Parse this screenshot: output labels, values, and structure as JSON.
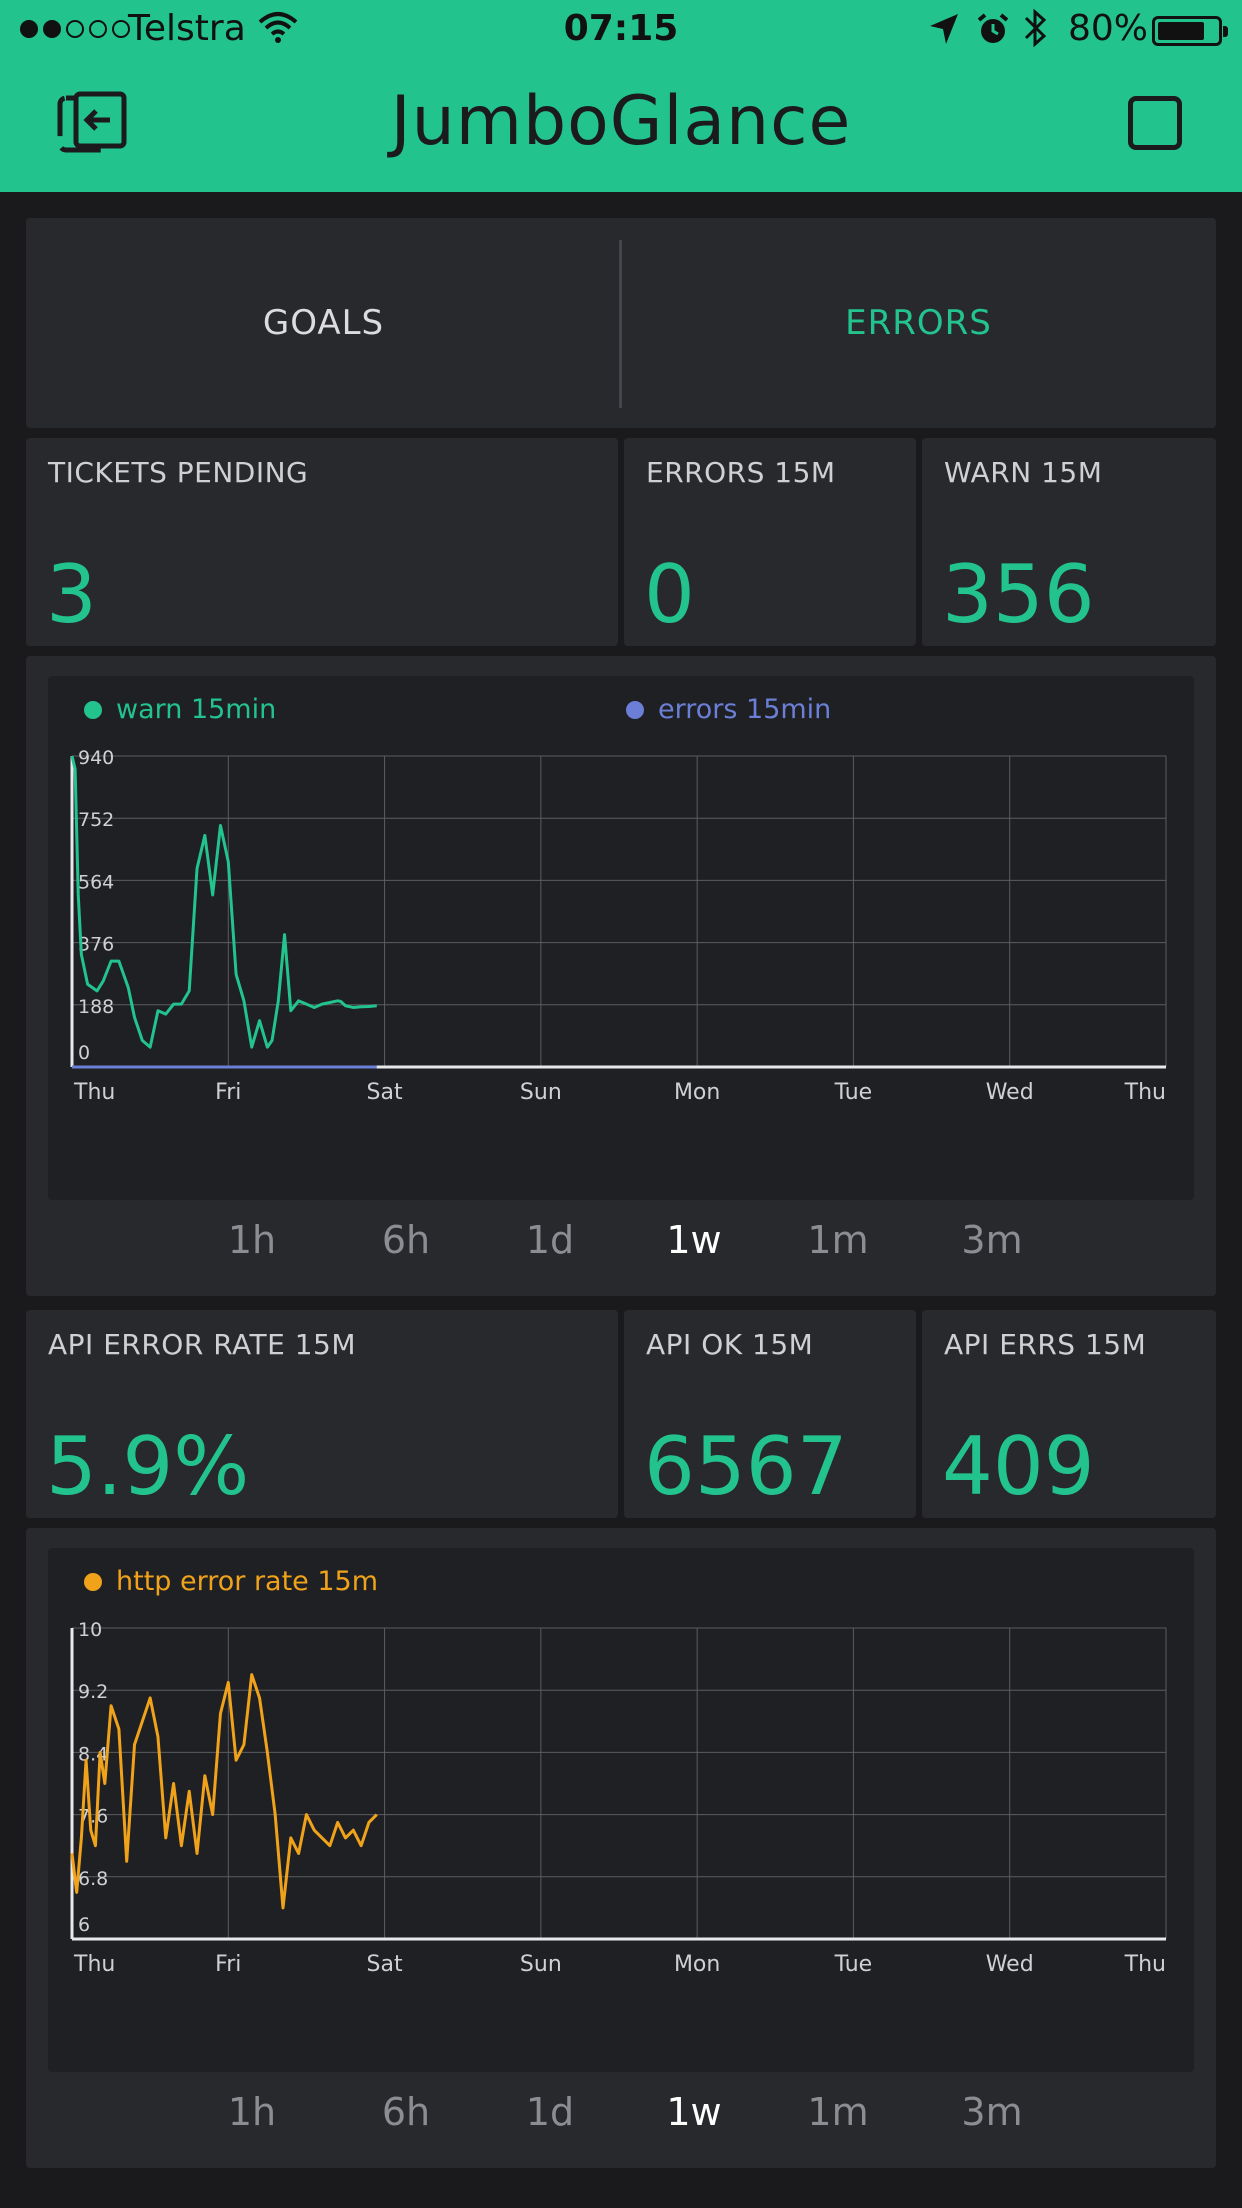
{
  "status_bar": {
    "carrier": "Telstra",
    "signal_bars_filled": 2,
    "signal_bars_total": 5,
    "time": "07:15",
    "battery": "80%",
    "battery_level": 0.8,
    "icons": [
      "wifi-icon",
      "location-arrow-icon",
      "alarm-icon",
      "bluetooth-icon",
      "battery-icon"
    ]
  },
  "header": {
    "title": "JumboGlance",
    "left_icon": "exit-icon",
    "right_icon": "square-icon",
    "color": "#23c38e"
  },
  "tabs": [
    {
      "label": "GOALS",
      "active": false
    },
    {
      "label": "ERRORS",
      "active": true
    }
  ],
  "metrics_top": [
    {
      "label": "TICKETS PENDING",
      "value": "3"
    },
    {
      "label": "ERRORS 15M",
      "value": "0"
    },
    {
      "label": "WARN 15M",
      "value": "356"
    }
  ],
  "chart1": {
    "legend": [
      {
        "name": "warn 15min",
        "color": "#23c38e"
      },
      {
        "name": "errors 15min",
        "color": "#6b7fd7"
      }
    ],
    "ranges": [
      "1h",
      "6h",
      "1d",
      "1w",
      "1m",
      "3m"
    ],
    "active_range": "1w"
  },
  "metrics_bottom": [
    {
      "label": "API ERROR RATE 15M",
      "value": "5.9%"
    },
    {
      "label": "API OK 15M",
      "value": "6567"
    },
    {
      "label": "API ERRS 15M",
      "value": "409"
    }
  ],
  "chart2": {
    "legend": [
      {
        "name": "http error rate 15m",
        "color": "#f0a21b"
      }
    ],
    "ranges": [
      "1h",
      "6h",
      "1d",
      "1w",
      "1m",
      "3m"
    ],
    "active_range": "1w"
  },
  "chart_data": [
    {
      "type": "line",
      "x_ticks": [
        "Thu",
        "Fri",
        "Sat",
        "Sun",
        "Mon",
        "Tue",
        "Wed",
        "Thu"
      ],
      "y_ticks": [
        "940",
        "752",
        "564",
        "376",
        "188",
        "0"
      ],
      "ylim": [
        0,
        940
      ],
      "grid": true,
      "legend_placement": "top",
      "series": [
        {
          "name": "warn 15min",
          "color": "#23c38e",
          "x": [
            0,
            0.02,
            0.04,
            0.06,
            0.1,
            0.16,
            0.2,
            0.25,
            0.3,
            0.36,
            0.4,
            0.45,
            0.5,
            0.55,
            0.6,
            0.65,
            0.7,
            0.75,
            0.8,
            0.85,
            0.9,
            0.95,
            1.0,
            1.05,
            1.1,
            1.15,
            1.2,
            1.25,
            1.28,
            1.32,
            1.36,
            1.4,
            1.45,
            1.5,
            1.55,
            1.6,
            1.65,
            1.7,
            1.72,
            1.75,
            1.8,
            1.85,
            1.9,
            1.95
          ],
          "y": [
            940,
            900,
            520,
            340,
            250,
            230,
            260,
            320,
            320,
            240,
            150,
            80,
            60,
            170,
            160,
            190,
            190,
            230,
            600,
            700,
            520,
            730,
            620,
            280,
            200,
            60,
            140,
            60,
            80,
            200,
            400,
            170,
            200,
            190,
            180,
            190,
            195,
            200,
            198,
            185,
            180,
            182,
            183,
            185
          ],
          "note_x": "days from first Thu"
        },
        {
          "name": "errors 15min",
          "color": "#6b7fd7",
          "x": [
            0,
            0.5,
            1.0,
            1.5,
            1.95
          ],
          "y": [
            0,
            0,
            0,
            0,
            0
          ]
        }
      ]
    },
    {
      "type": "line",
      "x_ticks": [
        "Thu",
        "Fri",
        "Sat",
        "Sun",
        "Mon",
        "Tue",
        "Wed",
        "Thu"
      ],
      "y_ticks": [
        "10",
        "9.2",
        "8.4",
        "7.6",
        "6.8",
        "6"
      ],
      "ylim": [
        6,
        10
      ],
      "grid": true,
      "legend_placement": "top",
      "series": [
        {
          "name": "http error rate 15m",
          "color": "#f0a21b",
          "x": [
            0,
            0.03,
            0.06,
            0.09,
            0.12,
            0.15,
            0.18,
            0.21,
            0.25,
            0.3,
            0.35,
            0.4,
            0.45,
            0.5,
            0.55,
            0.6,
            0.65,
            0.7,
            0.75,
            0.8,
            0.85,
            0.9,
            0.95,
            1.0,
            1.05,
            1.1,
            1.15,
            1.2,
            1.25,
            1.3,
            1.35,
            1.4,
            1.45,
            1.5,
            1.55,
            1.6,
            1.65,
            1.7,
            1.75,
            1.8,
            1.85,
            1.9,
            1.95
          ],
          "y": [
            7.1,
            6.6,
            7.3,
            8.3,
            7.4,
            7.2,
            8.4,
            8.0,
            9.0,
            8.7,
            7.0,
            8.5,
            8.8,
            9.1,
            8.6,
            7.3,
            8.0,
            7.2,
            7.9,
            7.1,
            8.1,
            7.6,
            8.9,
            9.3,
            8.3,
            8.5,
            9.4,
            9.1,
            8.4,
            7.6,
            6.4,
            7.3,
            7.1,
            7.6,
            7.4,
            7.3,
            7.2,
            7.5,
            7.3,
            7.4,
            7.2,
            7.5,
            7.6
          ]
        }
      ]
    }
  ]
}
